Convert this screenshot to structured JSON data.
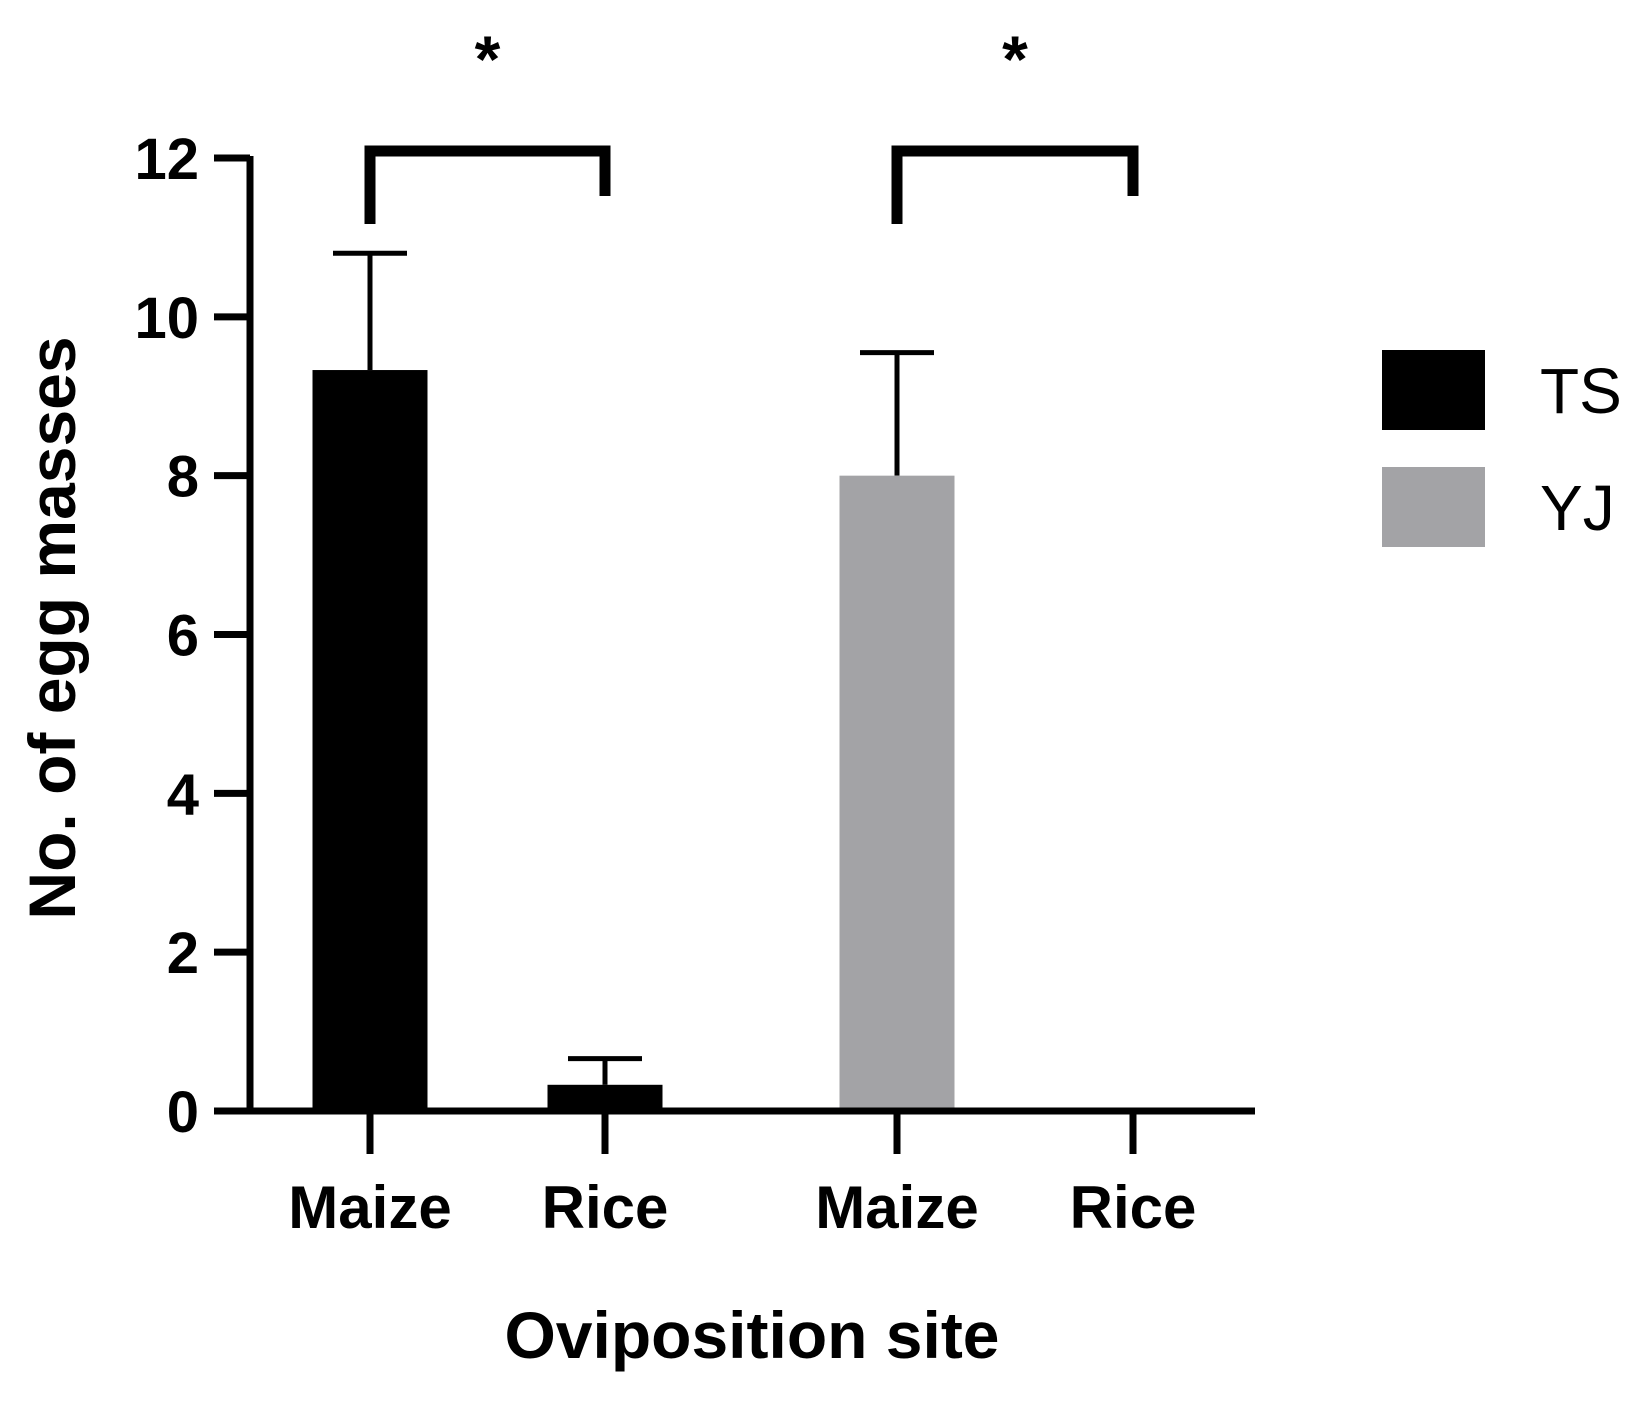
{
  "chart_data": {
    "type": "bar",
    "xlabel": "Oviposition site",
    "ylabel": "No. of egg masses",
    "ylim": [
      0,
      12
    ],
    "yticks": [
      0,
      2,
      4,
      6,
      8,
      10,
      12
    ],
    "grid": false,
    "legend_position": "right",
    "series": [
      {
        "name": "TS",
        "color": "#000000",
        "categories": [
          "Maize",
          "Rice"
        ],
        "values": [
          9.33,
          0.33
        ],
        "errors": [
          1.47,
          0.33
        ]
      },
      {
        "name": "YJ",
        "color": "#a3a3a6",
        "categories": [
          "Maize",
          "Rice"
        ],
        "values": [
          8.0,
          0.0
        ],
        "errors": [
          1.55,
          0.0
        ]
      }
    ],
    "significance": [
      {
        "label": "*",
        "group": "TS"
      },
      {
        "label": "*",
        "group": "YJ"
      }
    ]
  }
}
